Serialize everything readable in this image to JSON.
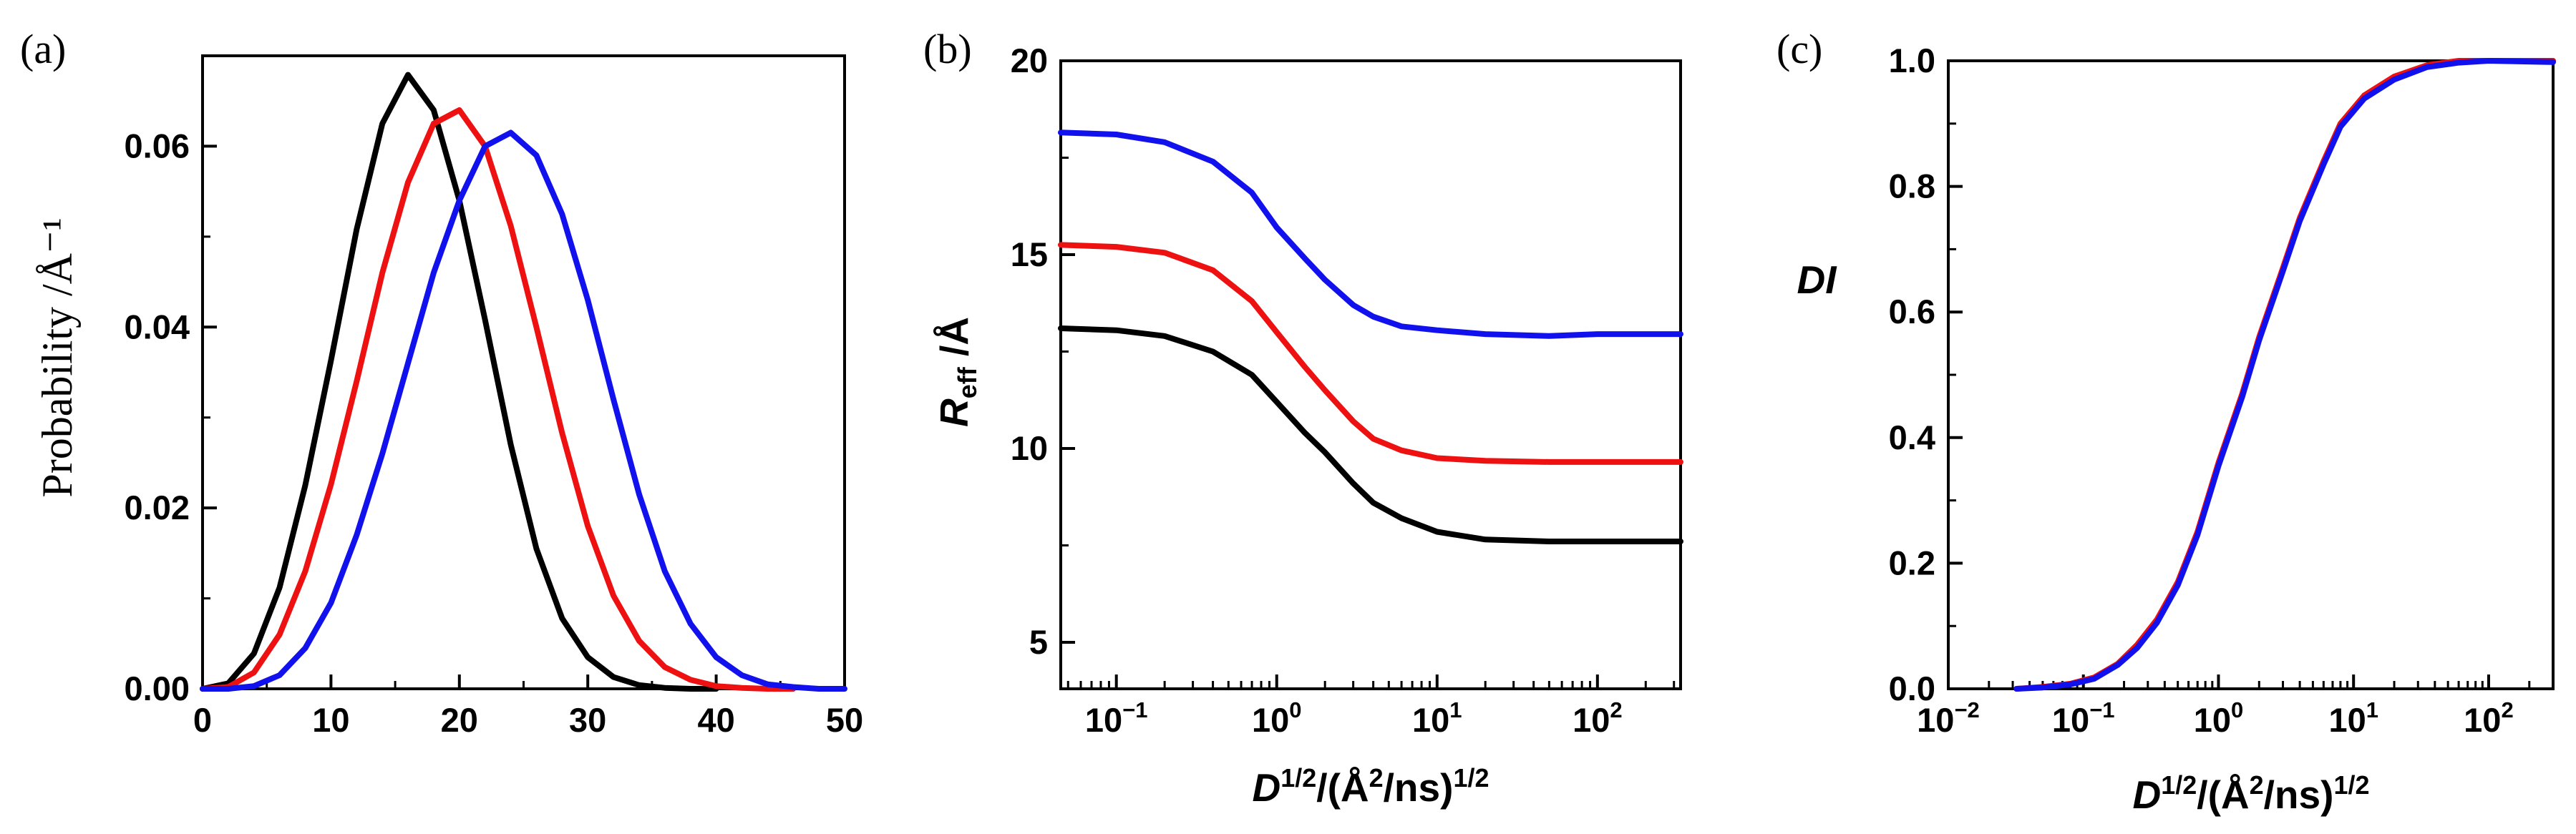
{
  "colors": {
    "black": "#000000",
    "red": "#ee1111",
    "blue": "#1111ee"
  },
  "chart_data": [
    {
      "type": "line",
      "panel_label": "(a)",
      "xlabel": "",
      "ylabel": "Probability /Å⁻¹",
      "xlim": [
        0,
        50
      ],
      "ylim": [
        0,
        0.07
      ],
      "xscale": "linear",
      "xticks": [
        0,
        10,
        20,
        30,
        40,
        50
      ],
      "xtick_labels": [
        "0",
        "10",
        "20",
        "30",
        "40",
        "50"
      ],
      "yticks": [
        0,
        0.02,
        0.04,
        0.06
      ],
      "ytick_labels": [
        "0.00",
        "0.02",
        "0.04",
        "0.06"
      ],
      "series": [
        {
          "name": "black",
          "color": "#000000",
          "x": [
            0,
            2,
            4,
            6,
            8,
            10,
            12,
            14,
            16,
            18,
            20,
            22,
            24,
            26,
            28,
            30,
            32,
            34,
            36,
            38,
            40
          ],
          "y": [
            0,
            0.0006,
            0.0039,
            0.0112,
            0.0225,
            0.0363,
            0.0508,
            0.0625,
            0.0679,
            0.064,
            0.054,
            0.0408,
            0.027,
            0.0155,
            0.0078,
            0.0035,
            0.0013,
            0.0004,
            0.0001,
            0,
            0
          ]
        },
        {
          "name": "red",
          "color": "#ee1111",
          "x": [
            0,
            2,
            4,
            6,
            8,
            10,
            12,
            14,
            16,
            18,
            20,
            22,
            24,
            26,
            28,
            30,
            32,
            34,
            36,
            38,
            40,
            42,
            44,
            46
          ],
          "y": [
            0,
            0.0002,
            0.0018,
            0.006,
            0.013,
            0.0226,
            0.034,
            0.046,
            0.056,
            0.0625,
            0.064,
            0.06,
            0.0512,
            0.04,
            0.0283,
            0.018,
            0.0103,
            0.0053,
            0.0024,
            0.001,
            0.0003,
            0.0001,
            0,
            0
          ]
        },
        {
          "name": "blue",
          "color": "#1111ee",
          "x": [
            0,
            2,
            4,
            6,
            8,
            10,
            12,
            14,
            16,
            18,
            20,
            22,
            24,
            26,
            28,
            30,
            32,
            34,
            36,
            38,
            40,
            42,
            44,
            46,
            48,
            50
          ],
          "y": [
            0,
            0,
            0.0003,
            0.0015,
            0.0045,
            0.0095,
            0.017,
            0.026,
            0.036,
            0.046,
            0.054,
            0.06,
            0.0615,
            0.059,
            0.0525,
            0.043,
            0.032,
            0.0215,
            0.013,
            0.0072,
            0.0035,
            0.0015,
            0.0005,
            0.0002,
            0,
            0
          ]
        }
      ]
    },
    {
      "type": "line",
      "panel_label": "(b)",
      "xlabel_parts": [
        "D",
        "1/2",
        "/(Å",
        "2",
        "/ns)",
        "1/2"
      ],
      "ylabel_parts": [
        "R",
        "eff",
        " /Å"
      ],
      "xscale": "log",
      "xlim": [
        0.045,
        330
      ],
      "ylim": [
        3.8,
        20
      ],
      "xticks": [
        0.1,
        1,
        10,
        100
      ],
      "xtick_labels": [
        [
          "10",
          "−1"
        ],
        [
          "10",
          "0"
        ],
        [
          "10",
          "1"
        ],
        [
          "10",
          "2"
        ]
      ],
      "yticks": [
        5,
        10,
        15,
        20
      ],
      "ytick_labels": [
        "5",
        "10",
        "15",
        "20"
      ],
      "series": [
        {
          "name": "black",
          "color": "#000000",
          "x": [
            0.045,
            0.1,
            0.2,
            0.4,
            0.7,
            1,
            1.5,
            2,
            3,
            4,
            6,
            10,
            20,
            50,
            100,
            330
          ],
          "y": [
            13.1,
            13.05,
            12.9,
            12.5,
            11.9,
            11.2,
            10.4,
            9.9,
            9.1,
            8.6,
            8.2,
            7.85,
            7.65,
            7.6,
            7.6,
            7.6
          ]
        },
        {
          "name": "red",
          "color": "#ee1111",
          "x": [
            0.045,
            0.1,
            0.2,
            0.4,
            0.7,
            1,
            1.5,
            2,
            3,
            4,
            6,
            10,
            20,
            50,
            100,
            330
          ],
          "y": [
            15.25,
            15.2,
            15.05,
            14.6,
            13.8,
            13.0,
            12.1,
            11.5,
            10.7,
            10.25,
            9.95,
            9.75,
            9.68,
            9.65,
            9.65,
            9.65
          ]
        },
        {
          "name": "blue",
          "color": "#1111ee",
          "x": [
            0.045,
            0.1,
            0.2,
            0.4,
            0.7,
            1,
            1.5,
            2,
            3,
            4,
            6,
            10,
            20,
            50,
            100,
            330
          ],
          "y": [
            18.15,
            18.1,
            17.9,
            17.4,
            16.6,
            15.7,
            14.9,
            14.35,
            13.7,
            13.4,
            13.15,
            13.05,
            12.95,
            12.9,
            12.95,
            12.95
          ]
        }
      ]
    },
    {
      "type": "line",
      "panel_label": "(c)",
      "xlabel_parts": [
        "D",
        "1/2",
        "/(Å",
        "2",
        "/ns)",
        "1/2"
      ],
      "ylabel": "DI",
      "xscale": "log",
      "xlim": [
        0.01,
        300
      ],
      "ylim": [
        0,
        1.0
      ],
      "xticks": [
        0.01,
        0.1,
        1,
        10,
        100
      ],
      "xtick_labels": [
        [
          "10",
          "−2"
        ],
        [
          "10",
          "−1"
        ],
        [
          "10",
          "0"
        ],
        [
          "10",
          "1"
        ],
        [
          "10",
          "2"
        ]
      ],
      "yticks": [
        0,
        0.2,
        0.4,
        0.6,
        0.8,
        1.0
      ],
      "ytick_labels": [
        "0.0",
        "0.2",
        "0.4",
        "0.6",
        "0.8",
        "1.0"
      ],
      "series": [
        {
          "name": "red",
          "color": "#ee1111",
          "x": [
            0.032,
            0.05,
            0.08,
            0.12,
            0.18,
            0.25,
            0.35,
            0.5,
            0.7,
            1,
            1.5,
            2,
            3,
            4,
            6,
            8,
            12,
            20,
            35,
            60,
            100,
            300
          ],
          "y": [
            0,
            0.003,
            0.008,
            0.018,
            0.04,
            0.07,
            0.11,
            0.17,
            0.25,
            0.36,
            0.47,
            0.56,
            0.67,
            0.75,
            0.84,
            0.9,
            0.945,
            0.975,
            0.993,
            1.0,
            1.0,
            1.0
          ]
        },
        {
          "name": "blue",
          "color": "#1111ee",
          "x": [
            0.032,
            0.05,
            0.08,
            0.12,
            0.18,
            0.25,
            0.35,
            0.5,
            0.7,
            1,
            1.5,
            2,
            3,
            4,
            6,
            8,
            12,
            20,
            35,
            60,
            100,
            300
          ],
          "y": [
            0,
            0.002,
            0.007,
            0.016,
            0.038,
            0.065,
            0.105,
            0.165,
            0.245,
            0.355,
            0.465,
            0.555,
            0.665,
            0.745,
            0.835,
            0.895,
            0.94,
            0.97,
            0.99,
            0.997,
            1.0,
            0.998
          ]
        }
      ]
    }
  ]
}
